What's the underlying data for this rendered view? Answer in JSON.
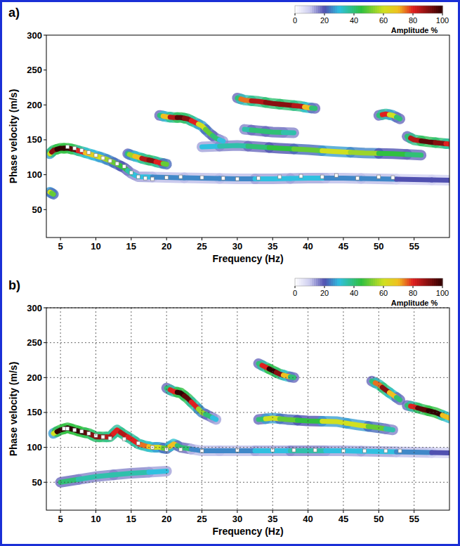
{
  "chart_data": [
    {
      "type": "line",
      "title": "a)",
      "x_label": "Frequency (Hz)",
      "y_label": "Phase velocity (m/s)",
      "xlim": [
        3,
        60
      ],
      "xticks": [
        5,
        10,
        15,
        20,
        25,
        30,
        35,
        40,
        45,
        50,
        55
      ],
      "ylim": [
        10,
        300
      ],
      "yticks": [
        50,
        100,
        150,
        200,
        250,
        300
      ],
      "grid": false,
      "colorbar": {
        "label": "Amplitude %",
        "range": [
          0,
          100
        ],
        "ticks": [
          0,
          20,
          40,
          60,
          80,
          100
        ]
      },
      "series": [
        {
          "type": "line",
          "x": [
            3.5,
            4,
            5,
            6,
            7,
            8,
            9,
            10,
            11,
            12,
            13,
            14,
            15,
            16,
            20,
            25,
            30,
            35,
            40,
            45,
            50,
            55,
            60
          ],
          "values": [
            130,
            135,
            138,
            138,
            136,
            133,
            130,
            127,
            124,
            120,
            115,
            110,
            102,
            97,
            96,
            95,
            94,
            94,
            95,
            95,
            94,
            93,
            92
          ],
          "amplitude": [
            60,
            90,
            100,
            100,
            95,
            80,
            70,
            65,
            60,
            55,
            50,
            45,
            35,
            30,
            25,
            25,
            25,
            30,
            30,
            25,
            25,
            20,
            20
          ]
        },
        {
          "type": "line",
          "x": [
            3.5,
            4
          ],
          "values": [
            75,
            72
          ],
          "amplitude": [
            60,
            50
          ]
        },
        {
          "type": "line",
          "x": [
            14.5,
            15,
            16,
            17,
            18,
            19,
            20
          ],
          "values": [
            130,
            128,
            125,
            122,
            120,
            117,
            115
          ],
          "amplitude": [
            40,
            55,
            70,
            85,
            90,
            80,
            50
          ]
        },
        {
          "type": "line",
          "x": [
            19,
            20,
            21,
            22,
            23,
            24,
            25,
            26,
            27,
            28
          ],
          "values": [
            185,
            183,
            182,
            182,
            180,
            175,
            170,
            160,
            152,
            148
          ],
          "amplitude": [
            40,
            70,
            85,
            95,
            90,
            80,
            60,
            50,
            40,
            30
          ]
        },
        {
          "type": "line",
          "x": [
            30,
            31,
            33,
            35,
            37,
            39,
            40,
            41
          ],
          "values": [
            210,
            207,
            205,
            202,
            200,
            198,
            196,
            195
          ],
          "amplitude": [
            40,
            75,
            85,
            90,
            90,
            85,
            70,
            40
          ]
        },
        {
          "type": "line",
          "x": [
            25,
            30,
            33,
            36,
            40,
            44,
            48,
            52,
            56
          ],
          "values": [
            140,
            142,
            140,
            138,
            136,
            133,
            131,
            130,
            128
          ],
          "amplitude": [
            30,
            35,
            40,
            45,
            50,
            60,
            55,
            45,
            40
          ]
        },
        {
          "type": "line",
          "x": [
            31,
            33,
            35,
            38
          ],
          "values": [
            165,
            163,
            161,
            160
          ],
          "amplitude": [
            35,
            40,
            40,
            35
          ]
        },
        {
          "type": "line",
          "x": [
            50,
            51,
            52,
            53
          ],
          "values": [
            185,
            187,
            185,
            180
          ],
          "amplitude": [
            40,
            80,
            60,
            40
          ]
        },
        {
          "type": "line",
          "x": [
            54,
            55,
            57,
            59,
            60
          ],
          "values": [
            155,
            150,
            147,
            145,
            144
          ],
          "amplitude": [
            40,
            85,
            95,
            90,
            80
          ]
        },
        {
          "type": "scatter",
          "marker": "square",
          "color": "#ffffff",
          "x": [
            6,
            7,
            8,
            9,
            10,
            11,
            12,
            13,
            14,
            15,
            16,
            17,
            18,
            20,
            22,
            25,
            28,
            30,
            33,
            36,
            39,
            42,
            44,
            47,
            50,
            52
          ],
          "values": [
            140,
            138,
            135,
            132,
            128,
            124,
            120,
            116,
            112,
            103,
            97,
            95,
            94,
            96,
            97,
            96,
            95,
            94,
            95,
            97,
            98,
            97,
            99,
            95,
            97,
            96
          ]
        }
      ]
    },
    {
      "type": "line",
      "title": "b)",
      "x_label": "Frequency (Hz)",
      "y_label": "Phase velocity (m/s)",
      "xlim": [
        3,
        60
      ],
      "xticks": [
        5,
        10,
        15,
        20,
        25,
        30,
        35,
        40,
        45,
        50,
        55
      ],
      "ylim": [
        10,
        300
      ],
      "yticks": [
        50,
        100,
        150,
        200,
        250,
        300
      ],
      "grid": true,
      "colorbar": {
        "label": "Amplitude %",
        "range": [
          0,
          100
        ],
        "ticks": [
          0,
          20,
          40,
          60,
          80,
          100
        ]
      },
      "series": [
        {
          "type": "line",
          "x": [
            4,
            5,
            6,
            7,
            8,
            9,
            10,
            11,
            12,
            13,
            14,
            15,
            16,
            17,
            18,
            19,
            20,
            21,
            22,
            25,
            30,
            35,
            40,
            45,
            50,
            55,
            60
          ],
          "values": [
            120,
            125,
            128,
            125,
            122,
            120,
            115,
            115,
            115,
            125,
            118,
            112,
            105,
            102,
            100,
            100,
            98,
            105,
            100,
            95,
            95,
            95,
            95,
            95,
            94,
            93,
            92
          ],
          "amplitude": [
            60,
            100,
            100,
            100,
            100,
            95,
            90,
            90,
            85,
            80,
            85,
            80,
            80,
            75,
            70,
            60,
            50,
            70,
            40,
            25,
            25,
            30,
            35,
            30,
            30,
            25,
            20
          ]
        },
        {
          "type": "line",
          "x": [
            5,
            10,
            15,
            20
          ],
          "values": [
            50,
            58,
            63,
            66
          ],
          "amplitude": [
            40,
            35,
            35,
            30
          ]
        },
        {
          "type": "line",
          "x": [
            20,
            21,
            22,
            23,
            24,
            25,
            26,
            27
          ],
          "values": [
            185,
            180,
            178,
            170,
            160,
            150,
            145,
            140
          ],
          "amplitude": [
            40,
            80,
            100,
            95,
            80,
            55,
            40,
            30
          ]
        },
        {
          "type": "line",
          "x": [
            33,
            34,
            35,
            36,
            37,
            38
          ],
          "values": [
            220,
            215,
            210,
            205,
            202,
            200
          ],
          "amplitude": [
            40,
            80,
            100,
            90,
            70,
            40
          ]
        },
        {
          "type": "line",
          "x": [
            33,
            35,
            37,
            40,
            44,
            47,
            50,
            52
          ],
          "values": [
            140,
            142,
            140,
            138,
            137,
            132,
            128,
            125
          ],
          "amplitude": [
            40,
            60,
            50,
            45,
            60,
            60,
            50,
            35
          ]
        },
        {
          "type": "line",
          "x": [
            49,
            50,
            51,
            52,
            53
          ],
          "values": [
            195,
            190,
            182,
            175,
            168
          ],
          "amplitude": [
            40,
            75,
            90,
            70,
            40
          ]
        },
        {
          "type": "line",
          "x": [
            54,
            55,
            56,
            58,
            60
          ],
          "values": [
            160,
            158,
            155,
            150,
            142
          ],
          "amplitude": [
            40,
            80,
            95,
            100,
            70
          ]
        },
        {
          "type": "scatter",
          "marker": "square",
          "color": "#ffffff",
          "x": [
            5.5,
            6,
            7,
            8,
            9,
            10,
            11,
            12,
            14,
            16,
            18,
            20,
            22,
            25,
            30,
            35,
            38,
            41,
            45,
            48,
            51,
            53
          ],
          "values": [
            127,
            127,
            125,
            123,
            120,
            117,
            115,
            113,
            112,
            106,
            100,
            97,
            97,
            95,
            96,
            96,
            96,
            96,
            95,
            95,
            95,
            95
          ]
        }
      ]
    }
  ]
}
